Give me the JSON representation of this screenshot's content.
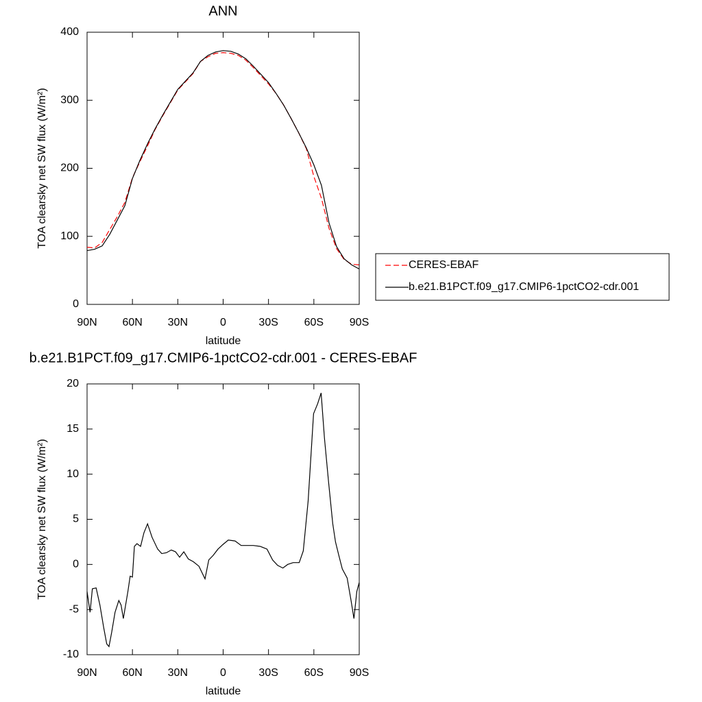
{
  "chart_data": [
    {
      "type": "line",
      "title": "ANN",
      "xlabel": "latitude",
      "ylabel": "TOA clearsky net SW flux (W/m²)",
      "xlim": [
        90,
        -90
      ],
      "xticks": [
        {
          "value": 90,
          "label": "90N"
        },
        {
          "value": 60,
          "label": "60N"
        },
        {
          "value": 30,
          "label": "30N"
        },
        0,
        {
          "value": -30,
          "label": "30S"
        },
        {
          "value": -60,
          "label": "60S"
        },
        {
          "value": -90,
          "label": "90S"
        }
      ],
      "ylim": [
        0,
        400
      ],
      "yticks": [
        0,
        100,
        200,
        300,
        400
      ],
      "legend": "outside right",
      "x": [
        90,
        85,
        80,
        75,
        70,
        65,
        60,
        55,
        50,
        45,
        40,
        35,
        30,
        25,
        20,
        15,
        10,
        5,
        0,
        -5,
        -10,
        -15,
        -20,
        -25,
        -30,
        -35,
        -40,
        -45,
        -50,
        -55,
        -60,
        -65,
        -70,
        -75,
        -80,
        -85,
        -90
      ],
      "series": [
        {
          "name": "CERES-EBAF",
          "color": "#ff0000",
          "style": "dashed",
          "values": [
            84,
            83,
            91,
            110,
            129,
            150,
            186,
            210,
            233,
            257,
            277,
            296,
            315,
            327,
            339,
            357,
            364,
            369,
            370,
            369,
            366,
            359,
            348,
            336,
            324,
            310,
            293,
            273,
            252,
            229,
            188,
            156,
            112,
            82,
            66,
            59,
            58
          ]
        },
        {
          "name": "b.e21.B1PCT.f09_g17.CMIP6-1pctCO2-cdr.001",
          "color": "#000000",
          "style": "solid",
          "values": [
            79,
            81,
            86,
            103,
            124,
            145,
            185,
            212,
            236,
            258,
            278,
            297,
            316,
            328,
            340,
            357,
            366,
            371,
            373,
            372,
            368,
            361,
            350,
            338,
            326,
            310,
            293,
            273,
            252,
            230,
            205,
            175,
            120,
            85,
            67,
            58,
            52
          ]
        }
      ]
    },
    {
      "type": "line",
      "title": "b.e21.B1PCT.f09_g17.CMIP6-1pctCO2-cdr.001 - CERES-EBAF",
      "xlabel": "latitude",
      "ylabel": "TOA clearsky net SW flux (W/m²)",
      "xlim": [
        90,
        -90
      ],
      "xticks": [
        {
          "value": 90,
          "label": "90N"
        },
        {
          "value": 60,
          "label": "60N"
        },
        {
          "value": 30,
          "label": "30N"
        },
        0,
        {
          "value": -30,
          "label": "30S"
        },
        {
          "value": -60,
          "label": "60S"
        },
        {
          "value": -90,
          "label": "90S"
        }
      ],
      "ylim": [
        -10,
        20
      ],
      "yticks": [
        -10,
        -5,
        0,
        5,
        10,
        15,
        20
      ],
      "x": [
        90,
        88,
        86.5,
        84,
        81.5,
        79,
        77,
        75.5,
        73.7,
        71.5,
        69,
        67.5,
        66,
        63,
        61.5,
        60,
        58.7,
        57,
        54.6,
        52.4,
        50,
        47,
        43.3,
        40.6,
        37.5,
        34.3,
        31.5,
        28.8,
        26,
        23,
        19.7,
        16,
        12,
        9.5,
        6.6,
        3.4,
        0.2,
        -3.4,
        -7.9,
        -11.9,
        -15.5,
        -20,
        -24.5,
        -29,
        -32.7,
        -36,
        -39.5,
        -42.7,
        -46.3,
        -50.3,
        -53,
        -56.2,
        -59.8,
        -62.5,
        -64.8,
        -67,
        -69.8,
        -72.5,
        -74.3,
        -76.5,
        -78.8,
        -82,
        -84.6,
        -86.5,
        -88.4,
        -90
      ],
      "series": [
        {
          "color": "#000000",
          "style": "solid",
          "values": [
            -3,
            -5.3,
            -2.7,
            -2.6,
            -4.5,
            -7,
            -8.8,
            -9.1,
            -7.5,
            -5.3,
            -4,
            -4.5,
            -6,
            -3,
            -1.3,
            -1.4,
            2.0,
            2.3,
            2.0,
            3.5,
            4.5,
            3,
            1.7,
            1.2,
            1.3,
            1.6,
            1.4,
            0.8,
            1.4,
            0.6,
            0.3,
            -0.2,
            -1.6,
            0.5,
            1.0,
            1.7,
            2.2,
            2.7,
            2.6,
            2.1,
            2.1,
            2.1,
            2.0,
            1.7,
            0.5,
            -0.1,
            -0.4,
            0.0,
            0.2,
            0.2,
            1.5,
            7,
            16.7,
            17.8,
            19.0,
            14,
            9,
            4.5,
            2.5,
            1.0,
            -0.5,
            -1.5,
            -4,
            -6,
            -3,
            -2
          ]
        }
      ]
    }
  ]
}
